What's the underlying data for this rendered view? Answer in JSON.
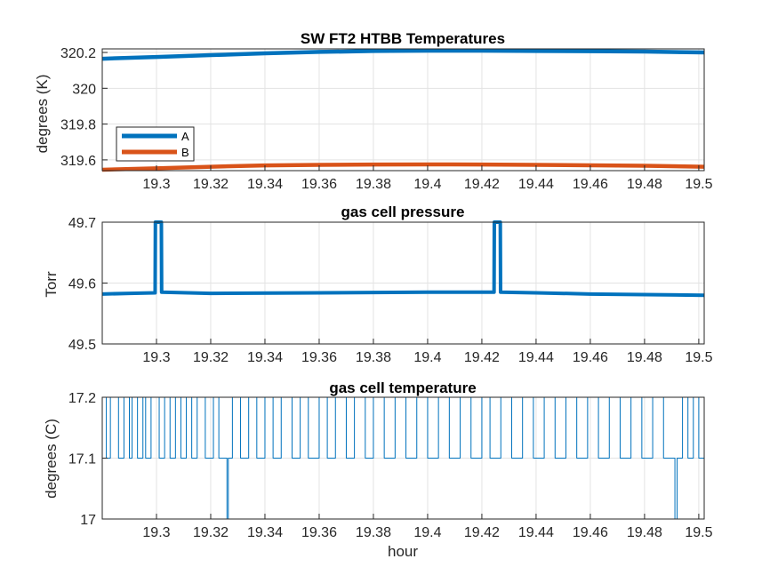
{
  "chart_data": [
    {
      "type": "line",
      "title": "SW FT2 HTBB Temperatures",
      "xlabel": "",
      "ylabel": "degrees (K)",
      "xlim": [
        19.28,
        19.502
      ],
      "ylim": [
        319.54,
        320.22
      ],
      "xticks": [
        19.3,
        19.32,
        19.34,
        19.36,
        19.38,
        19.4,
        19.42,
        19.44,
        19.46,
        19.48,
        19.5
      ],
      "xtick_labels": [
        "19.3",
        "19.32",
        "19.34",
        "19.36",
        "19.38",
        "19.4",
        "19.42",
        "19.44",
        "19.46",
        "19.48",
        "19.5"
      ],
      "yticks": [
        319.6,
        319.8,
        320,
        320.2
      ],
      "ytick_labels": [
        "319.6",
        "319.8",
        "320",
        "320.2"
      ],
      "grid": true,
      "legend_position": "bottom-left",
      "series": [
        {
          "name": "A",
          "color": "#0072BD",
          "x": [
            19.28,
            19.3,
            19.32,
            19.34,
            19.36,
            19.38,
            19.4,
            19.42,
            19.44,
            19.46,
            19.48,
            19.502
          ],
          "y": [
            320.165,
            320.175,
            320.185,
            320.195,
            320.203,
            320.208,
            320.21,
            320.21,
            320.208,
            320.207,
            320.205,
            320.2
          ]
        },
        {
          "name": "B",
          "color": "#D95319",
          "x": [
            19.28,
            19.3,
            19.32,
            19.34,
            19.36,
            19.38,
            19.4,
            19.42,
            19.44,
            19.46,
            19.48,
            19.502
          ],
          "y": [
            319.545,
            319.553,
            319.562,
            319.569,
            319.572,
            319.574,
            319.575,
            319.574,
            319.572,
            319.57,
            319.567,
            319.562
          ]
        }
      ]
    },
    {
      "type": "line",
      "title": "gas cell pressure",
      "xlabel": "",
      "ylabel": "Torr",
      "xlim": [
        19.28,
        19.502
      ],
      "ylim": [
        49.5,
        49.7
      ],
      "xticks": [
        19.3,
        19.32,
        19.34,
        19.36,
        19.38,
        19.4,
        19.42,
        19.44,
        19.46,
        19.48,
        19.5
      ],
      "xtick_labels": [
        "19.3",
        "19.32",
        "19.34",
        "19.36",
        "19.38",
        "19.4",
        "19.42",
        "19.44",
        "19.46",
        "19.48",
        "19.5"
      ],
      "yticks": [
        49.5,
        49.6,
        49.7
      ],
      "ytick_labels": [
        "49.5",
        "49.6",
        "49.7"
      ],
      "grid": true,
      "series": [
        {
          "color": "#0072BD",
          "x": [
            19.28,
            19.29,
            19.2995,
            19.2996,
            19.3018,
            19.3019,
            19.32,
            19.36,
            19.4,
            19.4245,
            19.4246,
            19.4268,
            19.4269,
            19.44,
            19.46,
            19.48,
            19.502
          ],
          "y": [
            49.582,
            49.583,
            49.584,
            49.7,
            49.7,
            49.585,
            49.583,
            49.584,
            49.585,
            49.585,
            49.7,
            49.7,
            49.585,
            49.584,
            49.582,
            49.581,
            49.58
          ]
        }
      ]
    },
    {
      "type": "line",
      "title": "gas cell temperature",
      "xlabel": "hour",
      "ylabel": "degrees (C)",
      "xlim": [
        19.28,
        19.502
      ],
      "ylim": [
        17,
        17.2
      ],
      "xticks": [
        19.3,
        19.32,
        19.34,
        19.36,
        19.38,
        19.4,
        19.42,
        19.44,
        19.46,
        19.48,
        19.5
      ],
      "xtick_labels": [
        "19.3",
        "19.32",
        "19.34",
        "19.36",
        "19.38",
        "19.4",
        "19.42",
        "19.44",
        "19.46",
        "19.48",
        "19.5"
      ],
      "yticks": [
        17,
        17.1,
        17.2
      ],
      "ytick_labels": [
        "17",
        "17.1",
        "17.2"
      ],
      "grid": true,
      "series": [
        {
          "color": "#0072BD",
          "x": [
            19.28,
            19.2815,
            19.283,
            19.286,
            19.288,
            19.29,
            19.291,
            19.293,
            19.295,
            19.296,
            19.298,
            19.301,
            19.303,
            19.305,
            19.307,
            19.309,
            19.311,
            19.313,
            19.315,
            19.318,
            19.321,
            19.323,
            19.3255,
            19.326,
            19.3265,
            19.328,
            19.331,
            19.334,
            19.337,
            19.34,
            19.343,
            19.346,
            19.35,
            19.353,
            19.356,
            19.36,
            19.363,
            19.366,
            19.37,
            19.373,
            19.377,
            19.38,
            19.384,
            19.388,
            19.392,
            19.396,
            19.4,
            19.404,
            19.408,
            19.412,
            19.416,
            19.42,
            19.423,
            19.427,
            19.431,
            19.435,
            19.439,
            19.443,
            19.447,
            19.451,
            19.455,
            19.459,
            19.463,
            19.467,
            19.471,
            19.475,
            19.479,
            19.483,
            19.487,
            19.4905,
            19.4912,
            19.492,
            19.494,
            19.496,
            19.498,
            19.5,
            19.502
          ],
          "y": [
            17.2,
            17.1,
            17.2,
            17.1,
            17.2,
            17.1,
            17.2,
            17.1,
            17.2,
            17.1,
            17.2,
            17.1,
            17.2,
            17.1,
            17.2,
            17.1,
            17.2,
            17.1,
            17.2,
            17.1,
            17.2,
            17.1,
            17.1,
            17.0,
            17.1,
            17.2,
            17.1,
            17.2,
            17.1,
            17.2,
            17.1,
            17.2,
            17.1,
            17.2,
            17.1,
            17.2,
            17.1,
            17.2,
            17.1,
            17.2,
            17.1,
            17.2,
            17.1,
            17.2,
            17.1,
            17.2,
            17.1,
            17.2,
            17.1,
            17.2,
            17.1,
            17.2,
            17.1,
            17.2,
            17.1,
            17.2,
            17.1,
            17.2,
            17.1,
            17.2,
            17.1,
            17.2,
            17.1,
            17.2,
            17.1,
            17.2,
            17.1,
            17.2,
            17.1,
            17.1,
            17.0,
            17.1,
            17.2,
            17.1,
            17.2,
            17.1,
            17.2
          ]
        }
      ]
    }
  ]
}
